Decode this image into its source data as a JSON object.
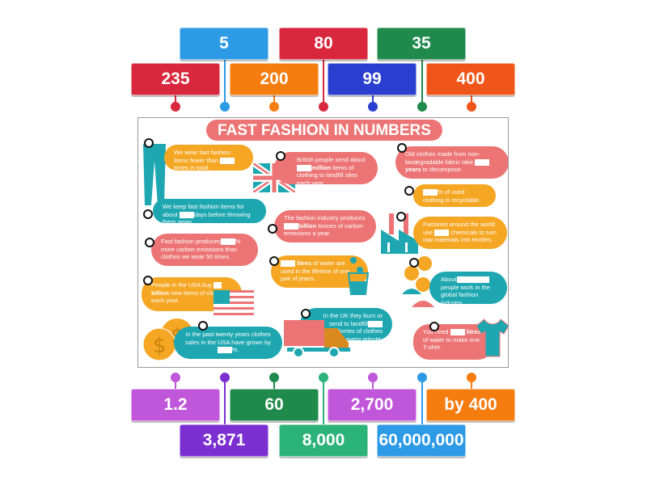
{
  "top_tiles": [
    {
      "label": "5",
      "color": "#2d9ae6"
    },
    {
      "label": "80",
      "color": "#d9283e"
    },
    {
      "label": "35",
      "color": "#1f8a4c"
    },
    {
      "label": "235",
      "color": "#d9283e"
    },
    {
      "label": "200",
      "color": "#f57c0f"
    },
    {
      "label": "99",
      "color": "#2a3fcf"
    },
    {
      "label": "400",
      "color": "#f0561a"
    }
  ],
  "bottom_tiles": [
    {
      "label": "1.2",
      "color": "#c056d9"
    },
    {
      "label": "60",
      "color": "#1f8a4c"
    },
    {
      "label": "2,700",
      "color": "#c056d9"
    },
    {
      "label": "by 400",
      "color": "#f57c0f"
    },
    {
      "label": "3,871",
      "color": "#7b2fd1"
    },
    {
      "label": "8,000",
      "color": "#2bb37a"
    },
    {
      "label": "60,000,000",
      "color": "#2d9ae6"
    }
  ],
  "top_pins": [
    "#d9283e",
    "#2d9ae6",
    "#f57c0f",
    "#d9283e",
    "#2a3fcf",
    "#1f8a4c",
    "#f0561a"
  ],
  "bottom_pins": [
    "#c056d9",
    "#7b2fd1",
    "#1f8a4c",
    "#2bb37a",
    "#c056d9",
    "#2d9ae6",
    "#f57c0f"
  ],
  "infographic": {
    "title": "FAST FASHION IN NUMBERS",
    "facts": {
      "f1a": "We wear fast fashion items fewer than",
      "f1b": "times in total.",
      "f2a": "British people send about",
      "f2b": "million",
      "f2c": "items of clothing to landfill sites each year.",
      "f3a": "Old clothes made from non-biodegradable fabric take",
      "f3b": "years",
      "f3c": "to decompose.",
      "f4a": "We keep fast fashion items for about",
      "f4b": "days before throwing them away.",
      "f5a": "% of used clothing is recyclable.",
      "f6a": "The fashion industry produces",
      "f6b": "billion",
      "f6c": "tonnes of carbon emissions a year.",
      "f7a": "Factories around the world use",
      "f7b": "chemicals to turn raw materials into textiles.",
      "f8a": "Fast fashion produces",
      "f8b": "% more carbon emissions than clothes we wear 50 times.",
      "f9a": "litres",
      "f9b": "of water are used in the lifetime of one pair of jeans.",
      "f10a": "About",
      "f10b": "people work in the global fashion industry.",
      "f11a": "People in the USA buy",
      "f11b": "billion",
      "f11c": "new items of clothing each year.",
      "f12a": "In the UK they burn or send to landfill",
      "f12b": "rubbish lorries of clothes every minute.",
      "f13a": "In the past twenty years clothes sales in the USA have grown by",
      "f13b": "%.",
      "f14a": "You need",
      "f14b": "litres",
      "f14c": "of water to make one T-shirt."
    }
  }
}
